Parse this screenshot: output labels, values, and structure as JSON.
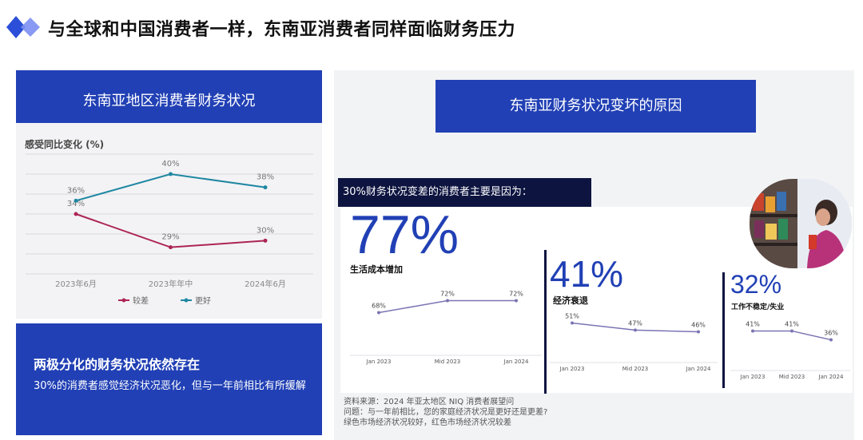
{
  "page": {
    "title": "与全球和中国消费者一样，东南亚消费者同样面临财务压力"
  },
  "left_panel": {
    "banner_title": "东南亚地区消费者财务状况",
    "chart_label": "感受同比变化 (%)"
  },
  "summary": {
    "title": "两极分化的财务状况依然存在",
    "text": "30%的消费者感觉经济状况恶化，但与一年前相比有所缓解"
  },
  "right_panel": {
    "banner_title": "东南亚财务状况变坏的原因",
    "header": "30%财务状况变差的消费者主要是因为：",
    "source_lines": [
      "资料来源：2024 年亚太地区 NIQ 消费者展望问",
      "问题：与一年前相比，您的家庭经济状况是更好还是更差?",
      "绿色市场经济状况较好，红色市场经济状况较差"
    ]
  },
  "colors": {
    "brand_blue": "#2140b5",
    "navy": "#0d1440",
    "better": "#1f87a2",
    "worse": "#ad2555",
    "mini_line": "#7a74b3"
  },
  "chart_data": [
    {
      "type": "line",
      "title": "",
      "ylabel": "感受同比变化 (%)",
      "categories": [
        "2023年6月",
        "2023年年中",
        "2024年6月"
      ],
      "series": [
        {
          "name": "较差",
          "color": "#ad2555",
          "values": [
            34,
            29,
            30
          ]
        },
        {
          "name": "更好",
          "color": "#1f87a2",
          "values": [
            36,
            40,
            38
          ]
        }
      ],
      "ylim": [
        25,
        43
      ],
      "grid": true,
      "legend": "bottom"
    },
    {
      "type": "line",
      "title": "生活成本增加",
      "headline": "77%",
      "categories": [
        "Jan 2023",
        "Mid 2023",
        "Jan 2024"
      ],
      "values": [
        68,
        72,
        72
      ]
    },
    {
      "type": "line",
      "title": "经济衰退",
      "headline": "41%",
      "categories": [
        "Jan 2023",
        "Mid 2023",
        "Jan 2024"
      ],
      "values": [
        51,
        47,
        46
      ]
    },
    {
      "type": "line",
      "title": "工作不稳定/失业",
      "headline": "32%",
      "categories": [
        "Jan 2023",
        "Mid 2023",
        "Jan 2024"
      ],
      "values": [
        41,
        41,
        36
      ]
    }
  ]
}
